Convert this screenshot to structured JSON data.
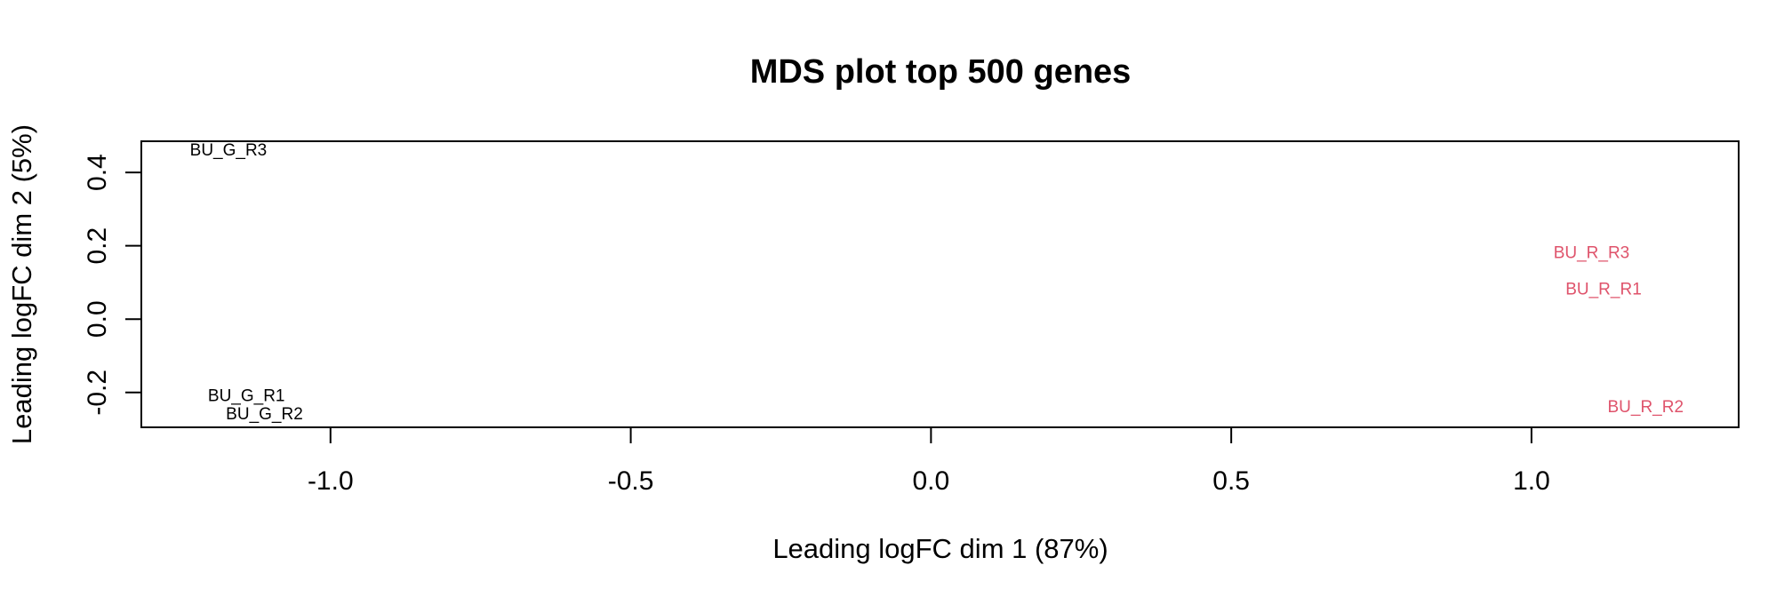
{
  "chart_data": {
    "type": "scatter",
    "title": "MDS plot top 500 genes",
    "xlabel": "Leading logFC dim 1 (87%)",
    "ylabel": "Leading logFC dim 2 (5%)",
    "xlim": [
      -1.315,
      1.345
    ],
    "ylim": [
      -0.295,
      0.485
    ],
    "xticks": [
      -1.0,
      -0.5,
      0.0,
      0.5,
      1.0
    ],
    "xtick_labels": [
      "-1.0",
      "-0.5",
      "0.0",
      "0.5",
      "1.0"
    ],
    "yticks": [
      -0.2,
      0.0,
      0.2,
      0.4
    ],
    "ytick_labels": [
      "-0.2",
      "0.0",
      "0.2",
      "0.4"
    ],
    "grid": false,
    "colors": {
      "group_G": "#000000",
      "group_R": "#DF536B"
    },
    "points": [
      {
        "label": "BU_G_R3",
        "x": -1.17,
        "y": 0.46,
        "color": "#000000"
      },
      {
        "label": "BU_G_R1",
        "x": -1.14,
        "y": -0.21,
        "color": "#000000"
      },
      {
        "label": "BU_G_R2",
        "x": -1.11,
        "y": -0.26,
        "color": "#000000"
      },
      {
        "label": "BU_R_R3",
        "x": 1.1,
        "y": 0.18,
        "color": "#DF536B"
      },
      {
        "label": "BU_R_R1",
        "x": 1.12,
        "y": 0.08,
        "color": "#DF536B"
      },
      {
        "label": "BU_R_R2",
        "x": 1.19,
        "y": -0.24,
        "color": "#DF536B"
      }
    ]
  }
}
